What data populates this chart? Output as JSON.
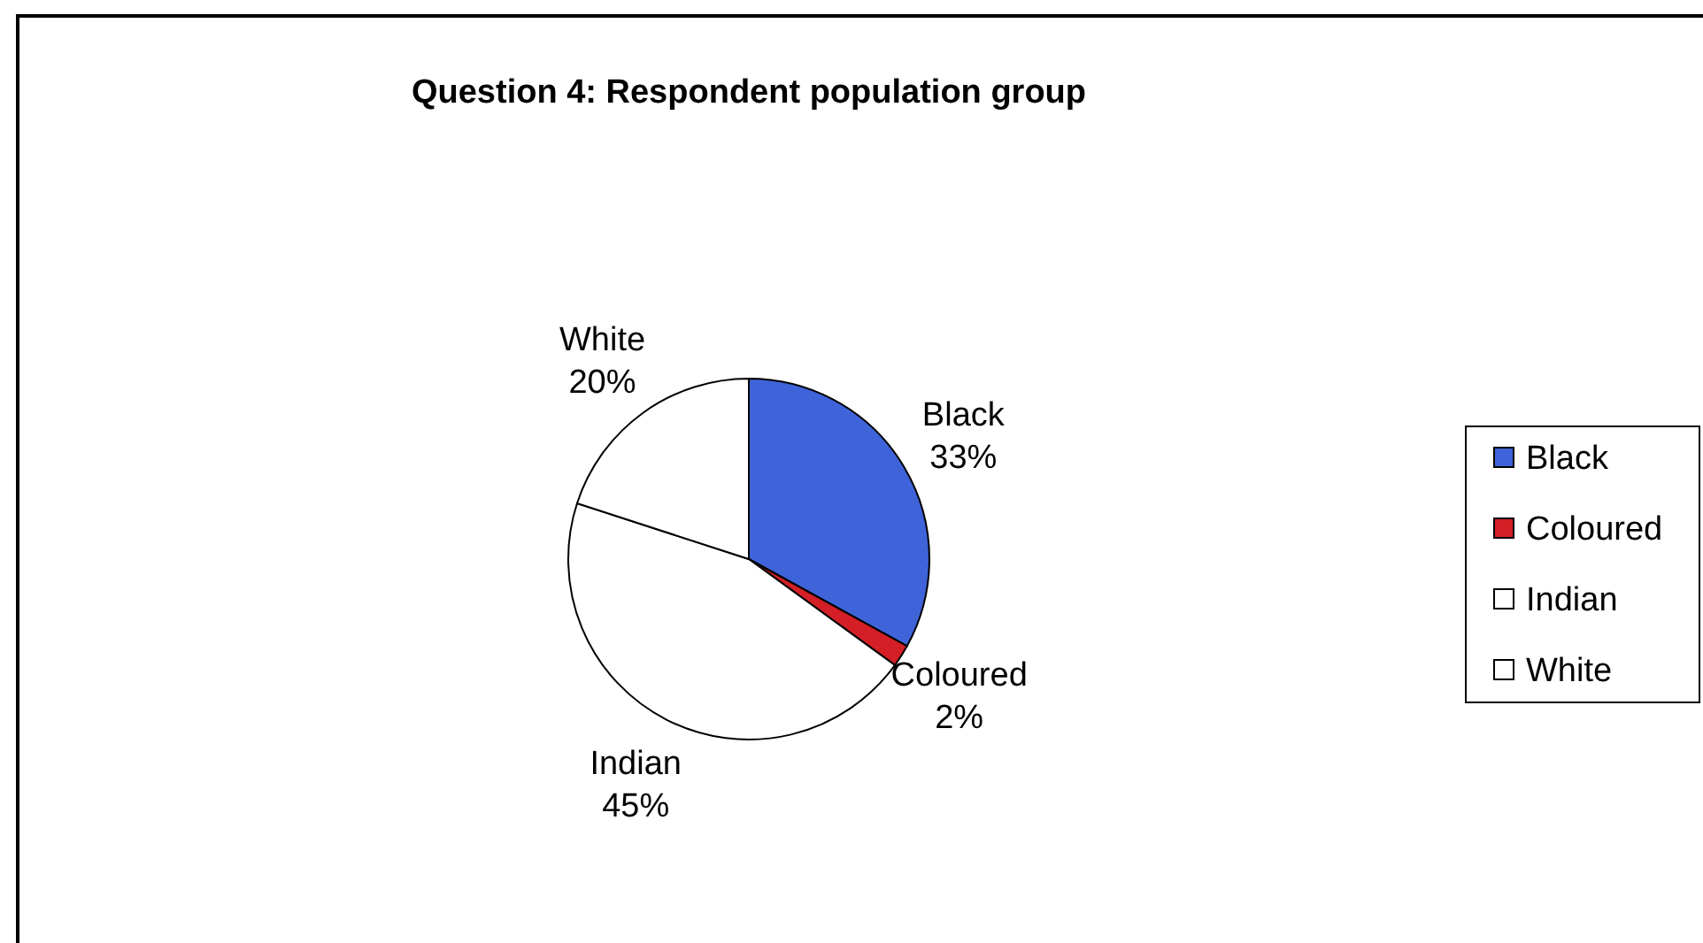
{
  "chart_data": {
    "type": "pie",
    "title": "Question 4: Respondent population group",
    "categories": [
      "Black",
      "Coloured",
      "Indian",
      "White"
    ],
    "values": [
      33,
      2,
      45,
      20
    ],
    "colors": [
      "#3f63d8",
      "#d41f26",
      "#ffffff",
      "#ffffff"
    ],
    "value_labels": [
      "33%",
      "2%",
      "45%",
      "20%"
    ],
    "legend": "right"
  }
}
